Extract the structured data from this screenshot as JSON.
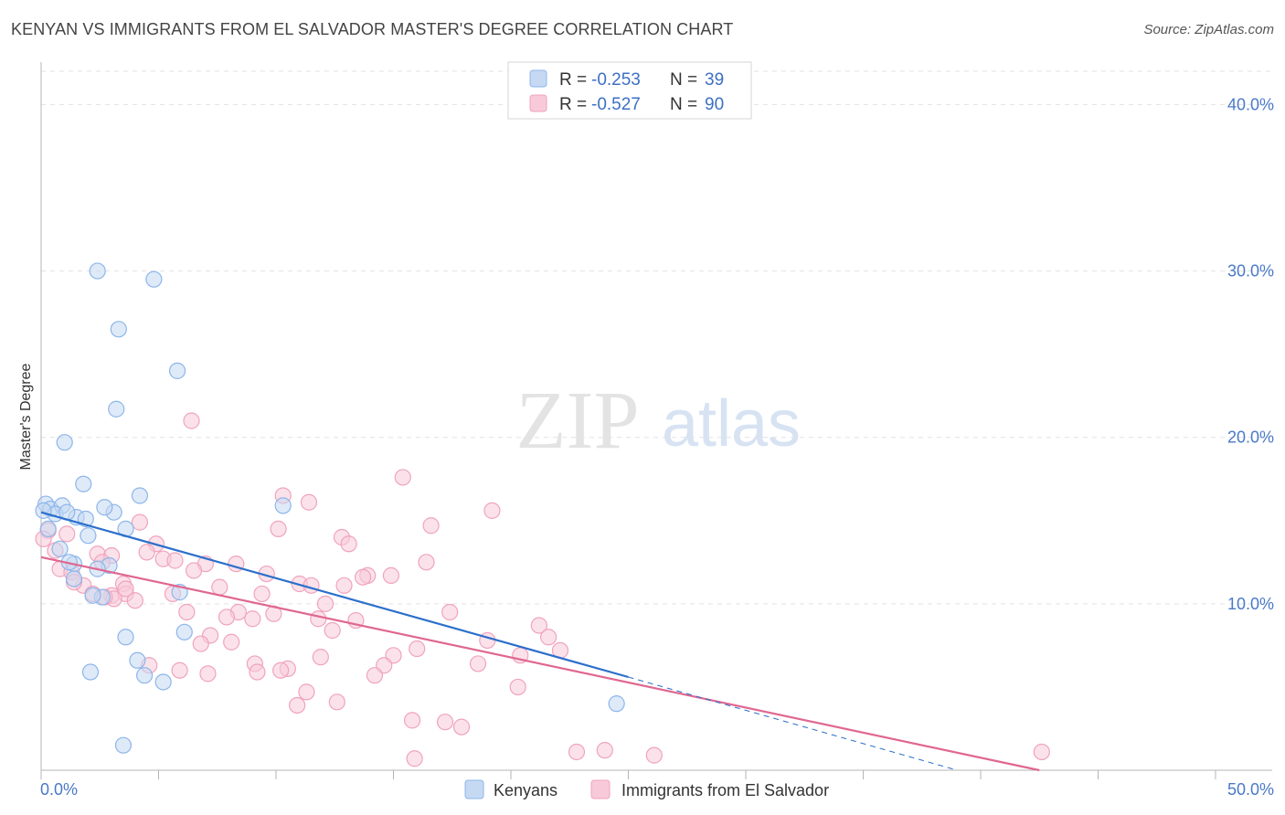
{
  "title": "KENYAN VS IMMIGRANTS FROM EL SALVADOR MASTER'S DEGREE CORRELATION CHART",
  "source": "Source: ZipAtlas.com",
  "watermark": {
    "zip": "ZIP",
    "atlas": "atlas"
  },
  "chart_data": {
    "type": "scatter",
    "ylabel": "Master's Degree",
    "xlim": [
      0,
      50
    ],
    "ylim": [
      0,
      42
    ],
    "y_ticks": [
      {
        "value": 10,
        "label": "10.0%"
      },
      {
        "value": 20,
        "label": "20.0%"
      },
      {
        "value": 30,
        "label": "30.0%"
      },
      {
        "value": 40,
        "label": "40.0%"
      }
    ],
    "x_tick_labels": {
      "min": "0.0%",
      "max": "50.0%"
    },
    "x_minor_ticks": [
      0,
      5,
      10,
      15,
      20,
      25,
      30,
      35,
      40,
      45,
      50
    ],
    "legend": {
      "rows": [
        {
          "r_label": "R =",
          "r_value": "-0.253",
          "n_label": "N =",
          "n_value": "39"
        },
        {
          "r_label": "R =",
          "r_value": "-0.527",
          "n_label": "N =",
          "n_value": "90"
        }
      ]
    },
    "series": [
      {
        "name": "Kenyans",
        "color": "#8db6ea",
        "fill": "#c5d9f3",
        "line_color": "#2b6fcb",
        "trend": {
          "x0": 0,
          "y0": 15.5,
          "x1": 25,
          "y1": 5.6,
          "dash_to_x": 39,
          "dash_to_y": 0
        },
        "points": [
          [
            2.4,
            30.0
          ],
          [
            4.8,
            29.5
          ],
          [
            3.3,
            26.5
          ],
          [
            5.8,
            24.0
          ],
          [
            3.2,
            21.7
          ],
          [
            1.0,
            19.7
          ],
          [
            1.8,
            17.2
          ],
          [
            4.2,
            16.5
          ],
          [
            10.3,
            15.9
          ],
          [
            0.2,
            16.0
          ],
          [
            0.4,
            15.7
          ],
          [
            0.9,
            15.9
          ],
          [
            3.1,
            15.5
          ],
          [
            0.6,
            15.4
          ],
          [
            1.5,
            15.2
          ],
          [
            1.9,
            15.1
          ],
          [
            2.7,
            15.8
          ],
          [
            1.1,
            15.5
          ],
          [
            0.3,
            14.5
          ],
          [
            3.6,
            14.5
          ],
          [
            2.0,
            14.1
          ],
          [
            0.8,
            13.3
          ],
          [
            1.4,
            12.4
          ],
          [
            2.9,
            12.3
          ],
          [
            1.2,
            12.5
          ],
          [
            2.4,
            12.1
          ],
          [
            1.4,
            11.5
          ],
          [
            2.6,
            10.4
          ],
          [
            2.2,
            10.5
          ],
          [
            5.9,
            10.7
          ],
          [
            6.1,
            8.3
          ],
          [
            3.6,
            8.0
          ],
          [
            4.1,
            6.6
          ],
          [
            2.1,
            5.9
          ],
          [
            4.4,
            5.7
          ],
          [
            5.2,
            5.3
          ],
          [
            24.5,
            4.0
          ],
          [
            3.5,
            1.5
          ],
          [
            0.1,
            15.6
          ]
        ]
      },
      {
        "name": "Immigrants from El Salvador",
        "color": "#f0a3bd",
        "fill": "#f8cad9",
        "line_color": "#e0678f",
        "trend": {
          "x0": 0,
          "y0": 12.8,
          "x1": 42.5,
          "y1": 0
        },
        "points": [
          [
            6.4,
            21.0
          ],
          [
            15.4,
            17.6
          ],
          [
            10.3,
            16.5
          ],
          [
            11.4,
            16.1
          ],
          [
            19.2,
            15.6
          ],
          [
            4.2,
            14.9
          ],
          [
            16.6,
            14.7
          ],
          [
            10.1,
            14.5
          ],
          [
            0.3,
            14.4
          ],
          [
            1.1,
            14.2
          ],
          [
            12.8,
            14.0
          ],
          [
            13.1,
            13.6
          ],
          [
            4.9,
            13.6
          ],
          [
            0.6,
            13.2
          ],
          [
            2.4,
            13.0
          ],
          [
            4.5,
            13.1
          ],
          [
            3.0,
            12.9
          ],
          [
            5.2,
            12.7
          ],
          [
            5.7,
            12.6
          ],
          [
            2.6,
            12.5
          ],
          [
            7.0,
            12.4
          ],
          [
            8.3,
            12.4
          ],
          [
            16.4,
            12.5
          ],
          [
            0.8,
            12.1
          ],
          [
            1.3,
            11.9
          ],
          [
            6.5,
            12.0
          ],
          [
            9.6,
            11.8
          ],
          [
            14.9,
            11.7
          ],
          [
            13.9,
            11.7
          ],
          [
            13.7,
            11.6
          ],
          [
            1.8,
            11.1
          ],
          [
            3.5,
            11.2
          ],
          [
            7.6,
            11.0
          ],
          [
            11.0,
            11.2
          ],
          [
            11.5,
            11.1
          ],
          [
            12.9,
            11.1
          ],
          [
            1.4,
            11.3
          ],
          [
            2.2,
            10.6
          ],
          [
            3.0,
            10.5
          ],
          [
            3.6,
            10.6
          ],
          [
            4.0,
            10.2
          ],
          [
            5.6,
            10.6
          ],
          [
            9.4,
            10.6
          ],
          [
            3.1,
            10.3
          ],
          [
            2.7,
            10.4
          ],
          [
            12.1,
            10.0
          ],
          [
            8.4,
            9.5
          ],
          [
            6.2,
            9.5
          ],
          [
            9.0,
            9.1
          ],
          [
            9.9,
            9.4
          ],
          [
            11.8,
            9.1
          ],
          [
            13.4,
            9.0
          ],
          [
            17.4,
            9.5
          ],
          [
            7.9,
            9.2
          ],
          [
            21.2,
            8.7
          ],
          [
            12.4,
            8.4
          ],
          [
            21.6,
            8.0
          ],
          [
            7.2,
            8.1
          ],
          [
            19.0,
            7.8
          ],
          [
            8.1,
            7.7
          ],
          [
            6.8,
            7.6
          ],
          [
            16.0,
            7.3
          ],
          [
            22.1,
            7.2
          ],
          [
            20.4,
            6.9
          ],
          [
            15.0,
            6.9
          ],
          [
            11.9,
            6.8
          ],
          [
            9.1,
            6.4
          ],
          [
            18.6,
            6.4
          ],
          [
            5.9,
            6.0
          ],
          [
            4.6,
            6.3
          ],
          [
            14.6,
            6.3
          ],
          [
            10.5,
            6.1
          ],
          [
            7.1,
            5.8
          ],
          [
            9.2,
            5.9
          ],
          [
            14.2,
            5.7
          ],
          [
            20.3,
            5.0
          ],
          [
            11.3,
            4.7
          ],
          [
            10.9,
            3.9
          ],
          [
            12.6,
            4.1
          ],
          [
            17.2,
            2.9
          ],
          [
            17.9,
            2.6
          ],
          [
            15.8,
            3.0
          ],
          [
            24.0,
            1.2
          ],
          [
            26.1,
            0.9
          ],
          [
            22.8,
            1.1
          ],
          [
            15.9,
            0.7
          ],
          [
            42.6,
            1.1
          ],
          [
            10.2,
            6.0
          ],
          [
            3.6,
            10.9
          ],
          [
            0.1,
            13.9
          ]
        ]
      }
    ]
  }
}
